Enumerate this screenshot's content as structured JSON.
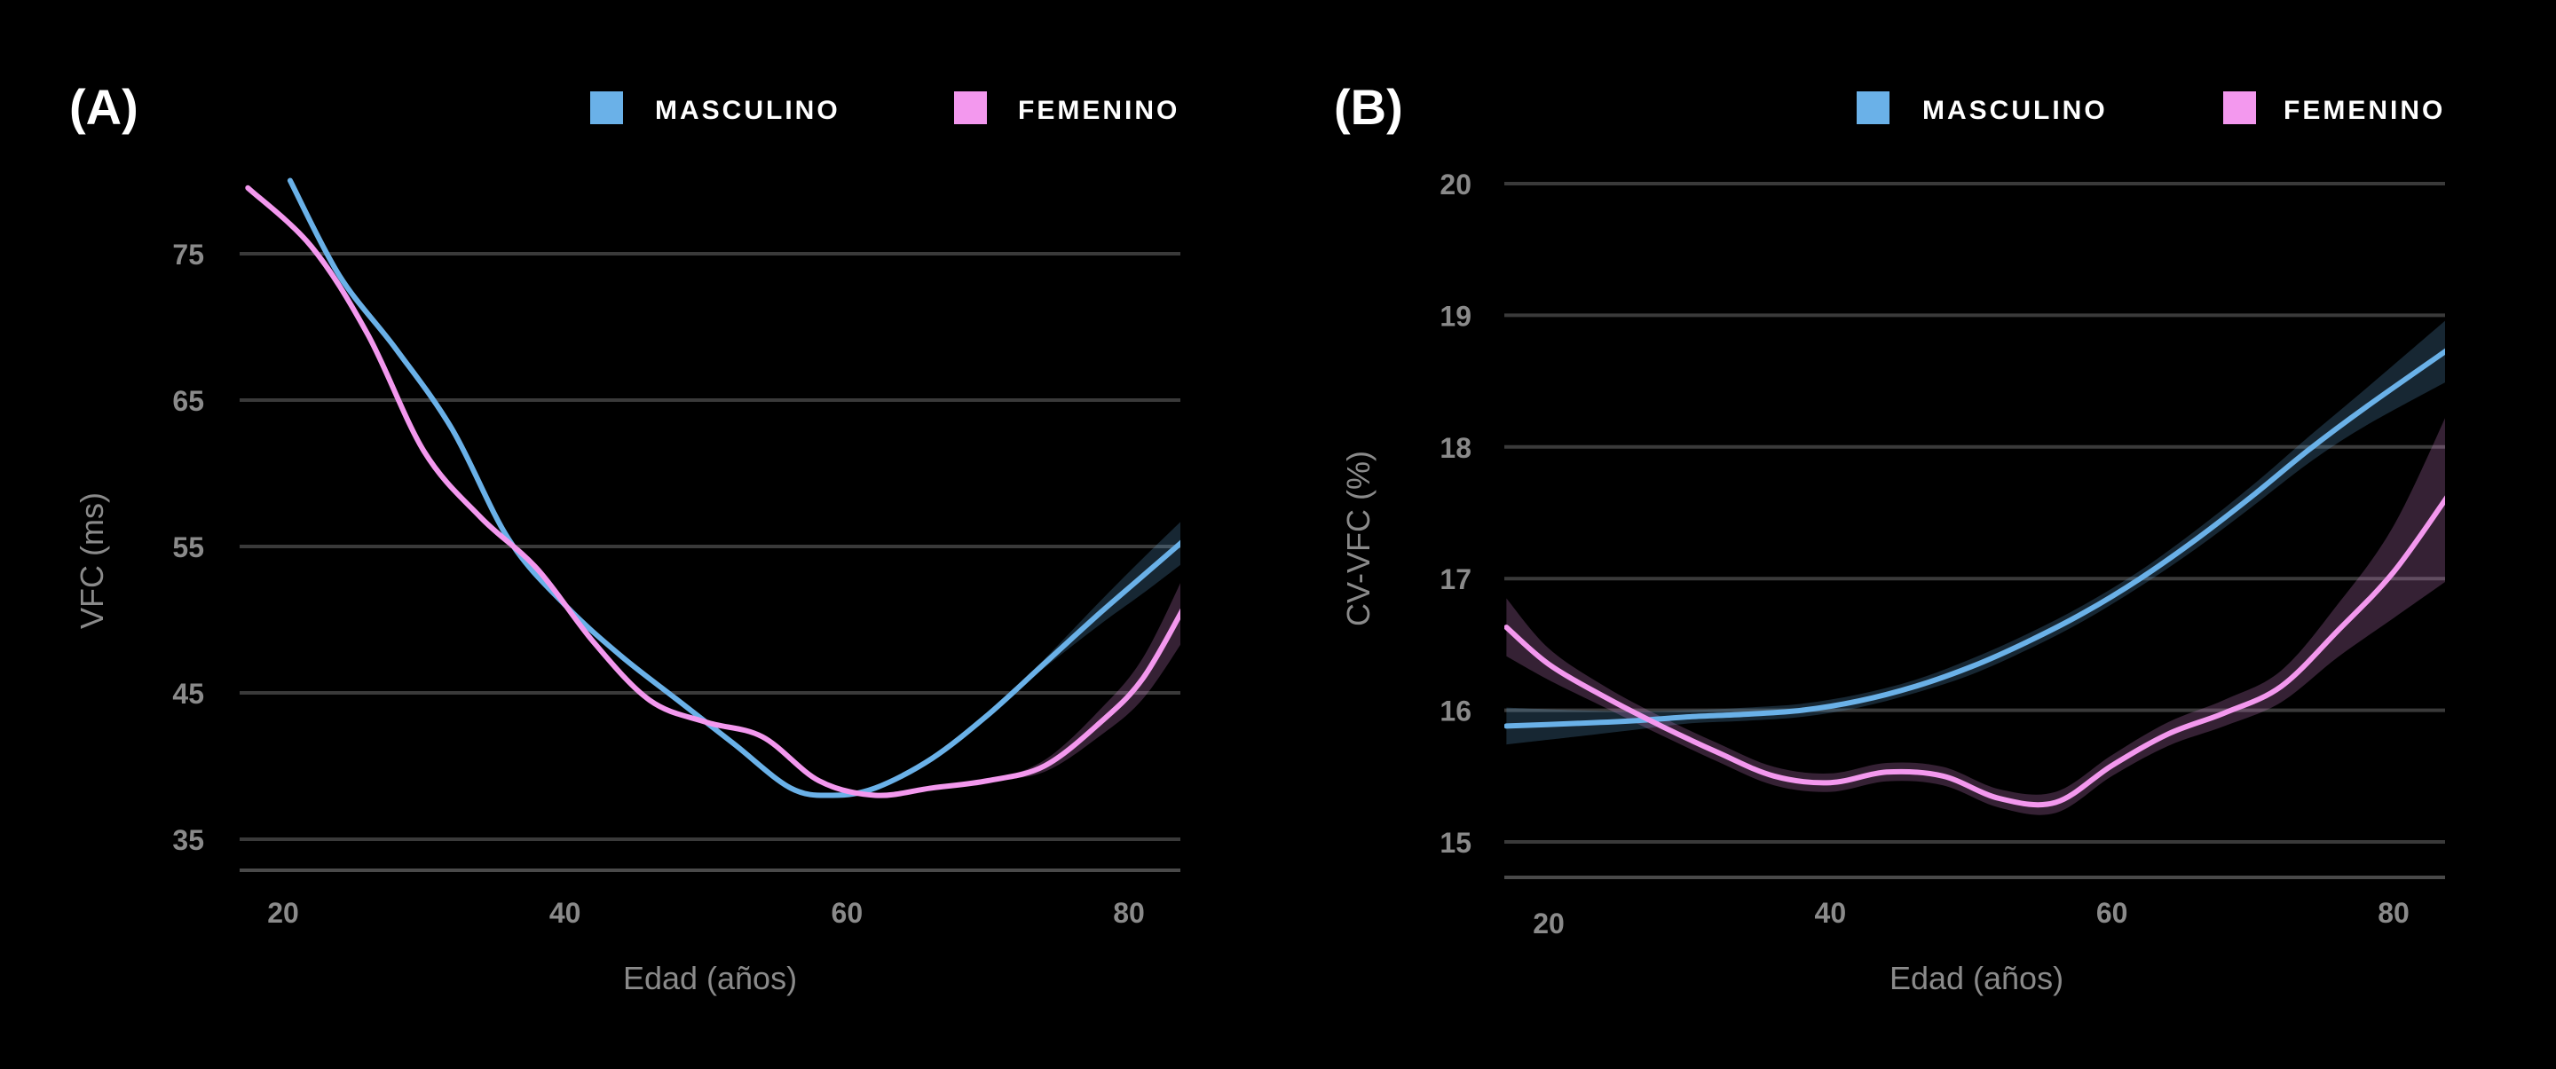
{
  "colors": {
    "masculino": "#6ab1e8",
    "femenino": "#f398ee",
    "background": "#000000"
  },
  "chart_data": [
    {
      "type": "line",
      "panel_label": "(A)",
      "xlabel": "Edad (años)",
      "ylabel": "VFC (ms)",
      "x_ticks": [
        "20",
        "40",
        "60",
        "80"
      ],
      "y_ticks": [
        "75",
        "65",
        "55",
        "45",
        "35"
      ],
      "xlim": [
        17,
        84
      ],
      "ylim": [
        34.5,
        80.5
      ],
      "legend_position": "top-right",
      "series": [
        {
          "name": "MASCULINO",
          "color": "#6ab1e8",
          "x": [
            20.5,
            24,
            28,
            32,
            36,
            40,
            44,
            48,
            52,
            56,
            59,
            62,
            66,
            70,
            74,
            78,
            81,
            84
          ],
          "y": [
            80,
            73.5,
            68.5,
            63,
            55.5,
            51,
            47.5,
            44.5,
            41.5,
            38.5,
            38,
            38.5,
            40.5,
            43.5,
            47,
            50.5,
            53,
            55.5
          ],
          "band": [
            0,
            0,
            0,
            0,
            0,
            0,
            0,
            0,
            0,
            0,
            0,
            0,
            0,
            0,
            0.3,
            0.8,
            1.2,
            1.5
          ]
        },
        {
          "name": "FEMENINO",
          "color": "#f398ee",
          "x": [
            17.5,
            22,
            26,
            30,
            34,
            38,
            42,
            46,
            50,
            54,
            58,
            62,
            66,
            70,
            74,
            78,
            81,
            84
          ],
          "y": [
            79.5,
            75.5,
            69.5,
            61.5,
            57,
            53.5,
            48.5,
            44.5,
            43,
            42,
            39,
            38,
            38.5,
            39,
            40,
            43,
            46,
            51
          ],
          "band": [
            0,
            0,
            0,
            0,
            0,
            0,
            0,
            0,
            0,
            0,
            0,
            0,
            0,
            0,
            0.4,
            0.9,
            1.4,
            2.2
          ]
        }
      ]
    },
    {
      "type": "line",
      "panel_label": "(B)",
      "xlabel": "Edad (años)",
      "ylabel": "CV-VFC (%)",
      "x_ticks": [
        "20",
        "40",
        "60",
        "80"
      ],
      "y_ticks": [
        "20",
        "19",
        "18",
        "17",
        "16",
        "15"
      ],
      "xlim": [
        17,
        84
      ],
      "ylim": [
        14.75,
        20.2
      ],
      "legend_position": "top-right",
      "series": [
        {
          "name": "MASCULINO",
          "color": "#6ab1e8",
          "x": [
            17,
            22,
            26,
            30,
            34,
            38,
            42,
            46,
            50,
            54,
            58,
            62,
            66,
            70,
            74,
            78,
            84
          ],
          "y": [
            15.88,
            15.9,
            15.92,
            15.95,
            15.97,
            16.0,
            16.07,
            16.18,
            16.33,
            16.52,
            16.74,
            17.0,
            17.3,
            17.63,
            17.98,
            18.3,
            18.75
          ],
          "band": [
            0.14,
            0.1,
            0.07,
            0.05,
            0.05,
            0.05,
            0.05,
            0.05,
            0.06,
            0.06,
            0.06,
            0.06,
            0.07,
            0.08,
            0.1,
            0.14,
            0.24
          ]
        },
        {
          "name": "FEMENINO",
          "color": "#f398ee",
          "x": [
            17,
            20,
            24,
            28,
            32,
            36,
            40,
            44,
            48,
            52,
            56,
            60,
            64,
            68,
            72,
            76,
            80,
            84
          ],
          "y": [
            16.63,
            16.35,
            16.1,
            15.88,
            15.68,
            15.5,
            15.45,
            15.53,
            15.5,
            15.33,
            15.3,
            15.58,
            15.82,
            15.98,
            16.18,
            16.6,
            17.05,
            17.65
          ],
          "band": [
            0.22,
            0.12,
            0.08,
            0.07,
            0.07,
            0.07,
            0.07,
            0.07,
            0.07,
            0.07,
            0.08,
            0.08,
            0.09,
            0.1,
            0.12,
            0.2,
            0.35,
            0.65
          ]
        }
      ]
    }
  ]
}
